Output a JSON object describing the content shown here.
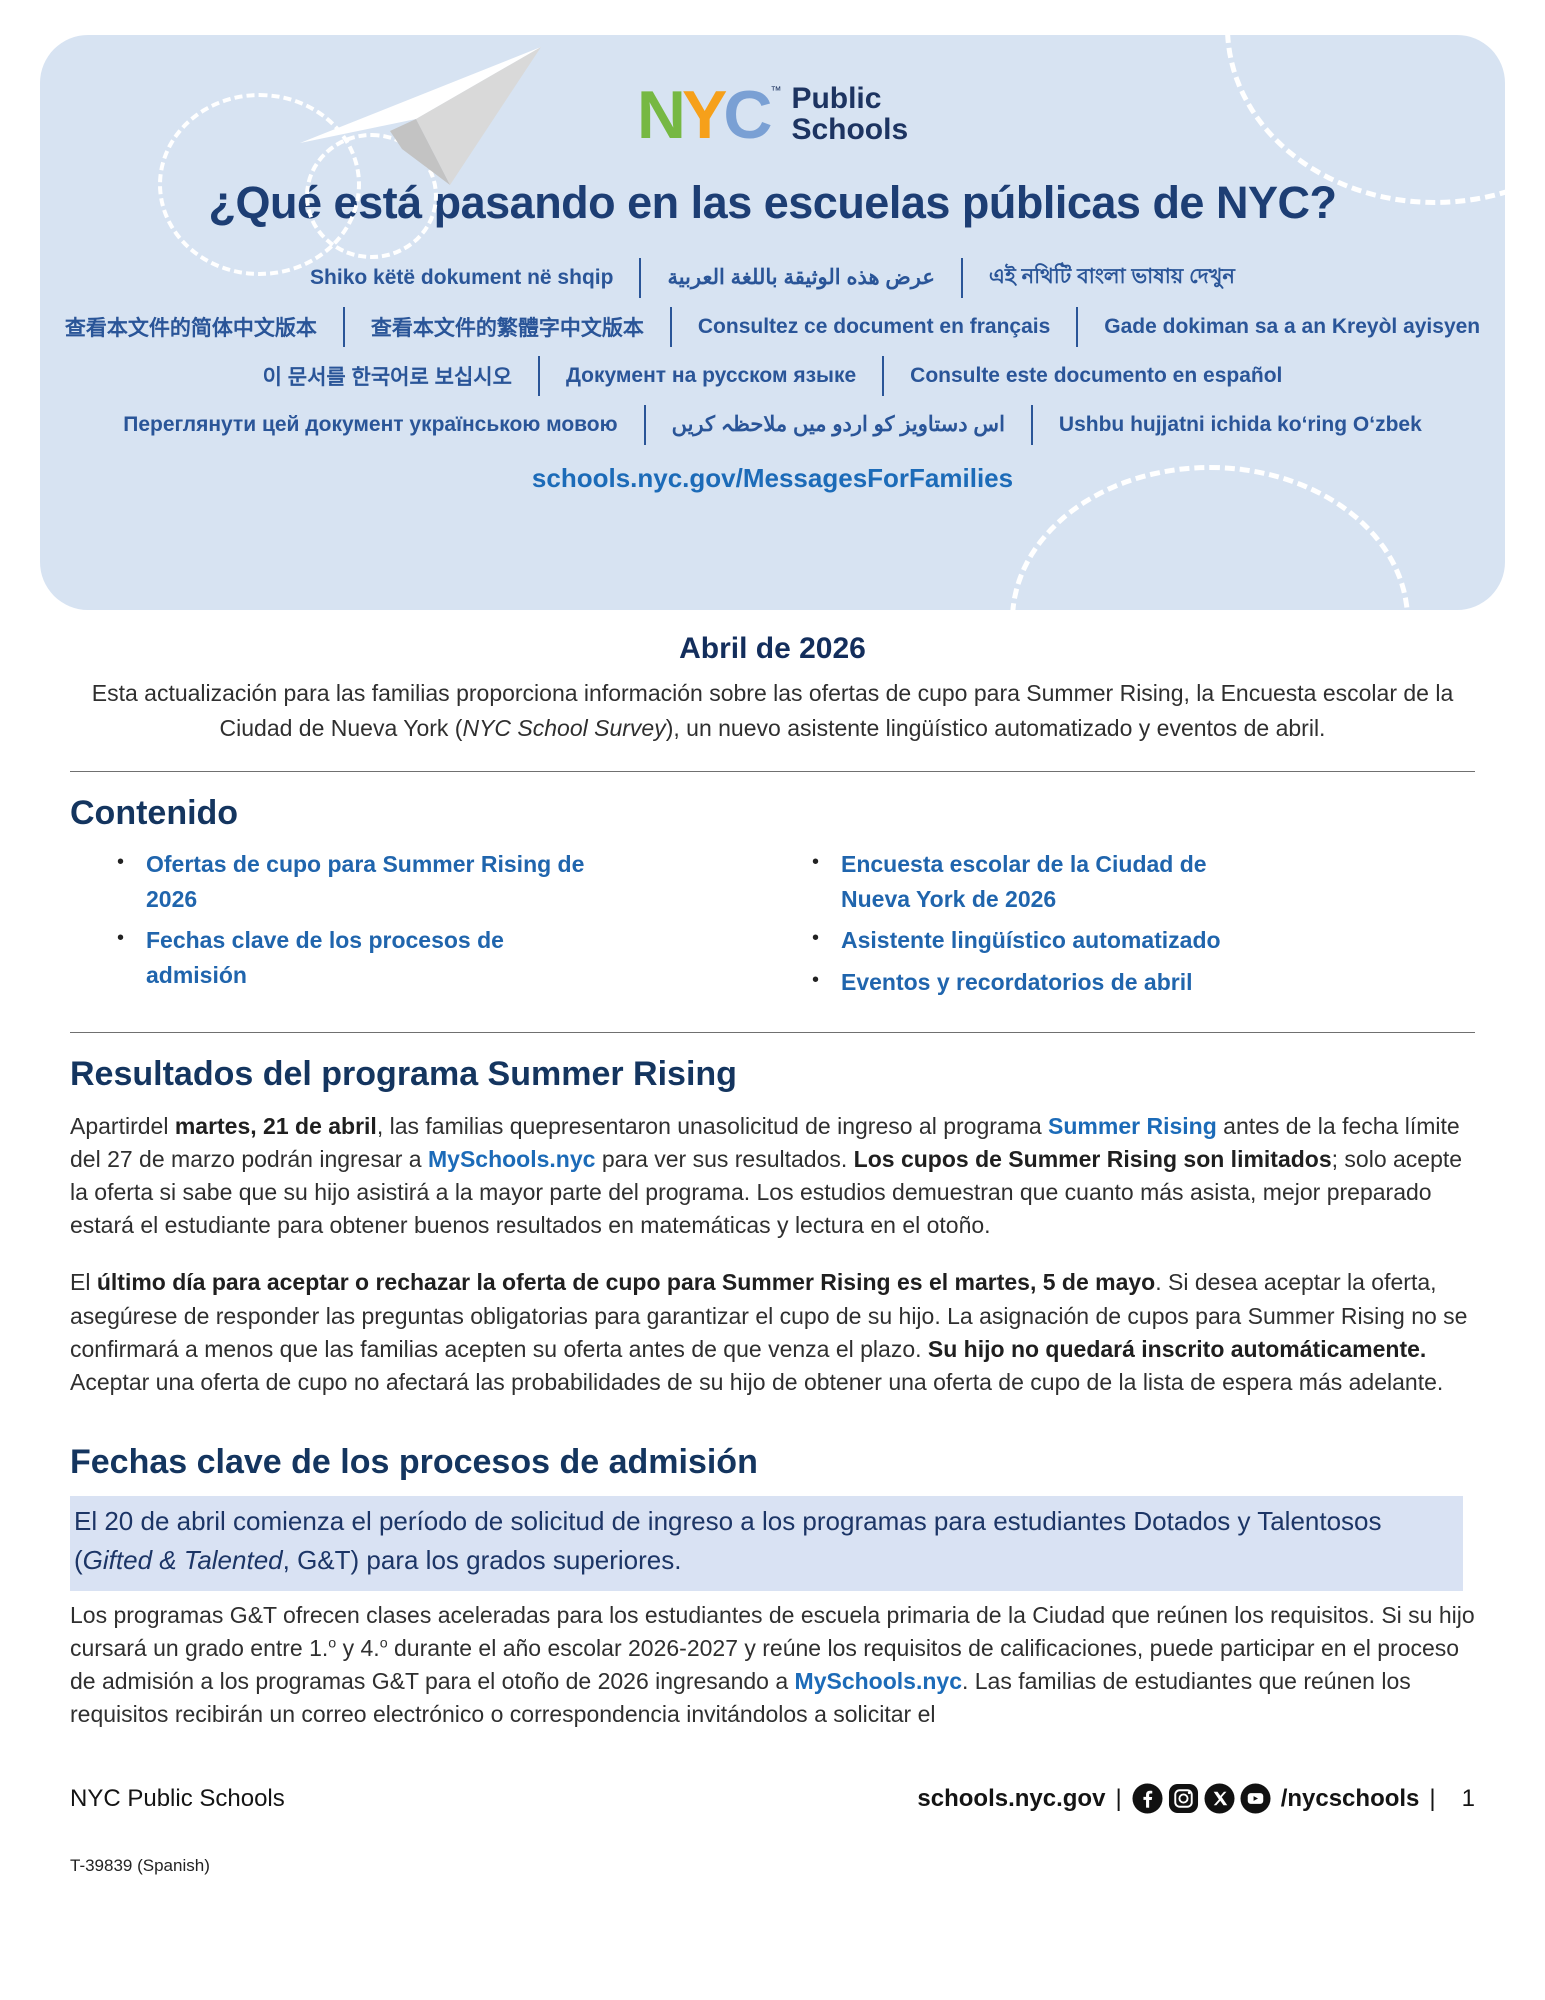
{
  "banner": {
    "logo": {
      "l1": "N",
      "l2": "Y",
      "l3": "C",
      "tm": "™",
      "word1": "Public",
      "word2": "Schools"
    },
    "title": "¿Qué está pasando en las escuelas públicas de NYC?",
    "language_rows": [
      [
        "Shiko këtë dokument në shqip",
        "عرض هذه الوثيقة باللغة العربية",
        "এই নথিটি বাংলা ভাষায় দেখুন"
      ],
      [
        "查看本文件的简体中文版本",
        "查看本文件的繁體字中文版本",
        "Consultez ce document en français",
        "Gade dokiman sa a an Kreyòl ayisyen"
      ],
      [
        "이 문서를 한국어로 보십시오",
        "Документ на русском языке",
        "Consulte este documento en español"
      ],
      [
        "Переглянути цей документ українською мовою",
        "اس دستاویز کو اردو میں ملاحظہ کریں",
        "Ushbu hujjatni ichida koʻring Oʻzbek"
      ]
    ],
    "link": "schools.nyc.gov/MessagesForFamilies"
  },
  "intro": {
    "heading": "Abril de 2026",
    "paragraph": [
      {
        "t": "Esta actualización para las familias proporciona información sobre las ofertas de cupo para Summer Rising, la Encuesta escolar de la Ciudad de Nueva York ("
      },
      {
        "t": "NYC School Survey",
        "i": true
      },
      {
        "t": "), un nuevo asistente lingüístico automatizado y eventos de abril."
      }
    ]
  },
  "contents": {
    "heading": "Contenido",
    "left": [
      "Ofertas de cupo para Summer Rising de 2026",
      "Fechas clave de los procesos de admisión"
    ],
    "right": [
      "Encuesta escolar de la Ciudad de Nueva York de 2026",
      "Asistente lingüístico automatizado",
      "Eventos y recordatorios de abril"
    ]
  },
  "summer": {
    "heading": "Resultados del programa Summer Rising",
    "p1": [
      {
        "t": "Apartirdel "
      },
      {
        "t": "martes, 21 de abril",
        "b": true
      },
      {
        "t": ", las familias quepresentaron unasolicitud de ingreso al programa "
      },
      {
        "t": "Summer Rising",
        "l": true
      },
      {
        "t": " antes de la fecha límite del 27 de marzo podrán ingresar a "
      },
      {
        "t": "MySchools.nyc",
        "l": true
      },
      {
        "t": " para ver sus resultados. "
      },
      {
        "t": "Los cupos de Summer Rising son limitados",
        "b": true
      },
      {
        "t": "; solo acepte la oferta si sabe que su hijo asistirá a la mayor parte del programa. Los estudios demuestran que cuanto más asista, mejor preparado estará el estudiante para obtener buenos resultados en matemáticas y lectura en el otoño."
      }
    ],
    "p2": [
      {
        "t": "El "
      },
      {
        "t": "último día para aceptar o rechazar la oferta de cupo para Summer Rising es el martes, 5 de mayo",
        "b": true
      },
      {
        "t": ". Si desea aceptar la oferta, asegúrese de responder las preguntas obligatorias para garantizar el cupo de su hijo. La asignación de cupos para Summer Rising no se confirmará a menos que las familias acepten su oferta antes de que venza el plazo. "
      },
      {
        "t": "Su hijo no quedará inscrito automáticamente.",
        "b": true
      },
      {
        "t": " Aceptar una oferta de cupo no afectará las probabilidades de su hijo de obtener una oferta de cupo de la lista de espera más adelante."
      }
    ]
  },
  "key_dates": {
    "heading": "Fechas clave de los procesos de admisión",
    "highlight": [
      {
        "t": "El 20 de abril comienza el período de solicitud de ingreso a los programas para estudiantes Dotados y Talentosos ("
      },
      {
        "t": "Gifted & Talented",
        "i": true
      },
      {
        "t": ", G&T) para los grados superiores."
      }
    ],
    "p1": [
      {
        "t": "Los programas G&T ofrecen clases aceleradas para los estudiantes de escuela primaria de la Ciudad que reúnen los requisitos. Si su hijo cursará un grado entre 1."
      },
      {
        "t": "o",
        "sup": true
      },
      {
        "t": " y 4."
      },
      {
        "t": "o",
        "sup": true
      },
      {
        "t": " durante el año escolar 2026-2027 y reúne los requisitos de calificaciones, puede participar en el proceso de admisión a los programas G&T para el otoño de 2026 ingresando a "
      },
      {
        "t": "MySchools.nyc",
        "l": true
      },
      {
        "t": ". Las familias de estudiantes que reúnen los requisitos recibirán un correo electrónico o correspondencia invitándolos a solicitar el"
      }
    ]
  },
  "footer": {
    "org": "NYC Public Schools",
    "site": "schools.nyc.gov",
    "divider": "|",
    "icons": [
      "facebook-icon",
      "instagram-icon",
      "x-icon",
      "youtube-icon"
    ],
    "handle": "/nycschools",
    "page": "1",
    "doc_code": "T-39839 (Spanish)"
  },
  "colors": {
    "banner_bg": "#d7e3f2",
    "heading_navy": "#14355f",
    "title_navy": "#1d3e74",
    "language_blue": "#2a5598",
    "link_blue": "#1c6bb8",
    "toc_blue": "#2065ad",
    "highlight_bg": "#d9e2f3",
    "logo_green": "#76b843",
    "logo_orange": "#f6a01a",
    "logo_blue": "#7aa0d4",
    "logo_navy": "#1d3461"
  }
}
